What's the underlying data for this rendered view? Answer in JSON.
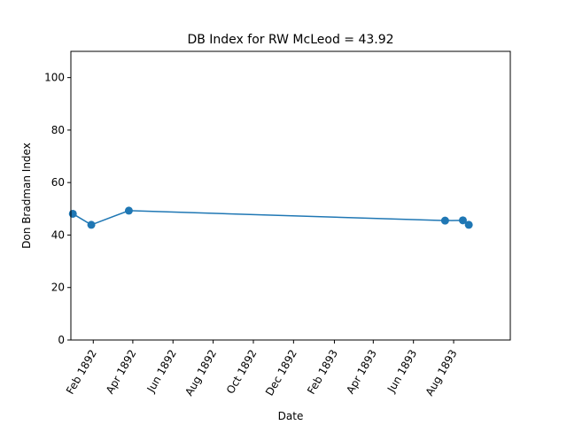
{
  "chart_data": {
    "type": "line",
    "title": "DB Index for RW McLeod = 43.92",
    "xlabel": "Date",
    "ylabel": "Don Bradman Index",
    "ylim": [
      0,
      110
    ],
    "xlim": [
      "1891-12-29",
      "1893-10-26"
    ],
    "y_ticks": [
      0,
      20,
      40,
      60,
      80,
      100
    ],
    "x_ticks": [
      {
        "date": "1892-02-01",
        "label": "Feb 1892"
      },
      {
        "date": "1892-04-01",
        "label": "Apr 1892"
      },
      {
        "date": "1892-06-01",
        "label": "Jun 1892"
      },
      {
        "date": "1892-08-01",
        "label": "Aug 1892"
      },
      {
        "date": "1892-10-01",
        "label": "Oct 1892"
      },
      {
        "date": "1892-12-01",
        "label": "Dec 1892"
      },
      {
        "date": "1893-02-01",
        "label": "Feb 1893"
      },
      {
        "date": "1893-04-01",
        "label": "Apr 1893"
      },
      {
        "date": "1893-06-01",
        "label": "Jun 1893"
      },
      {
        "date": "1893-08-01",
        "label": "Aug 1893"
      }
    ],
    "series": [
      {
        "color": "#1f77b4",
        "points": [
          {
            "x": "1892-01-01",
            "y": 48.1
          },
          {
            "x": "1892-01-29",
            "y": 43.9
          },
          {
            "x": "1892-03-26",
            "y": 49.3
          },
          {
            "x": "1893-07-19",
            "y": 45.5
          },
          {
            "x": "1893-08-15",
            "y": 45.6
          },
          {
            "x": "1893-08-24",
            "y": 43.9
          }
        ]
      }
    ],
    "grid": false,
    "legend": "none"
  }
}
